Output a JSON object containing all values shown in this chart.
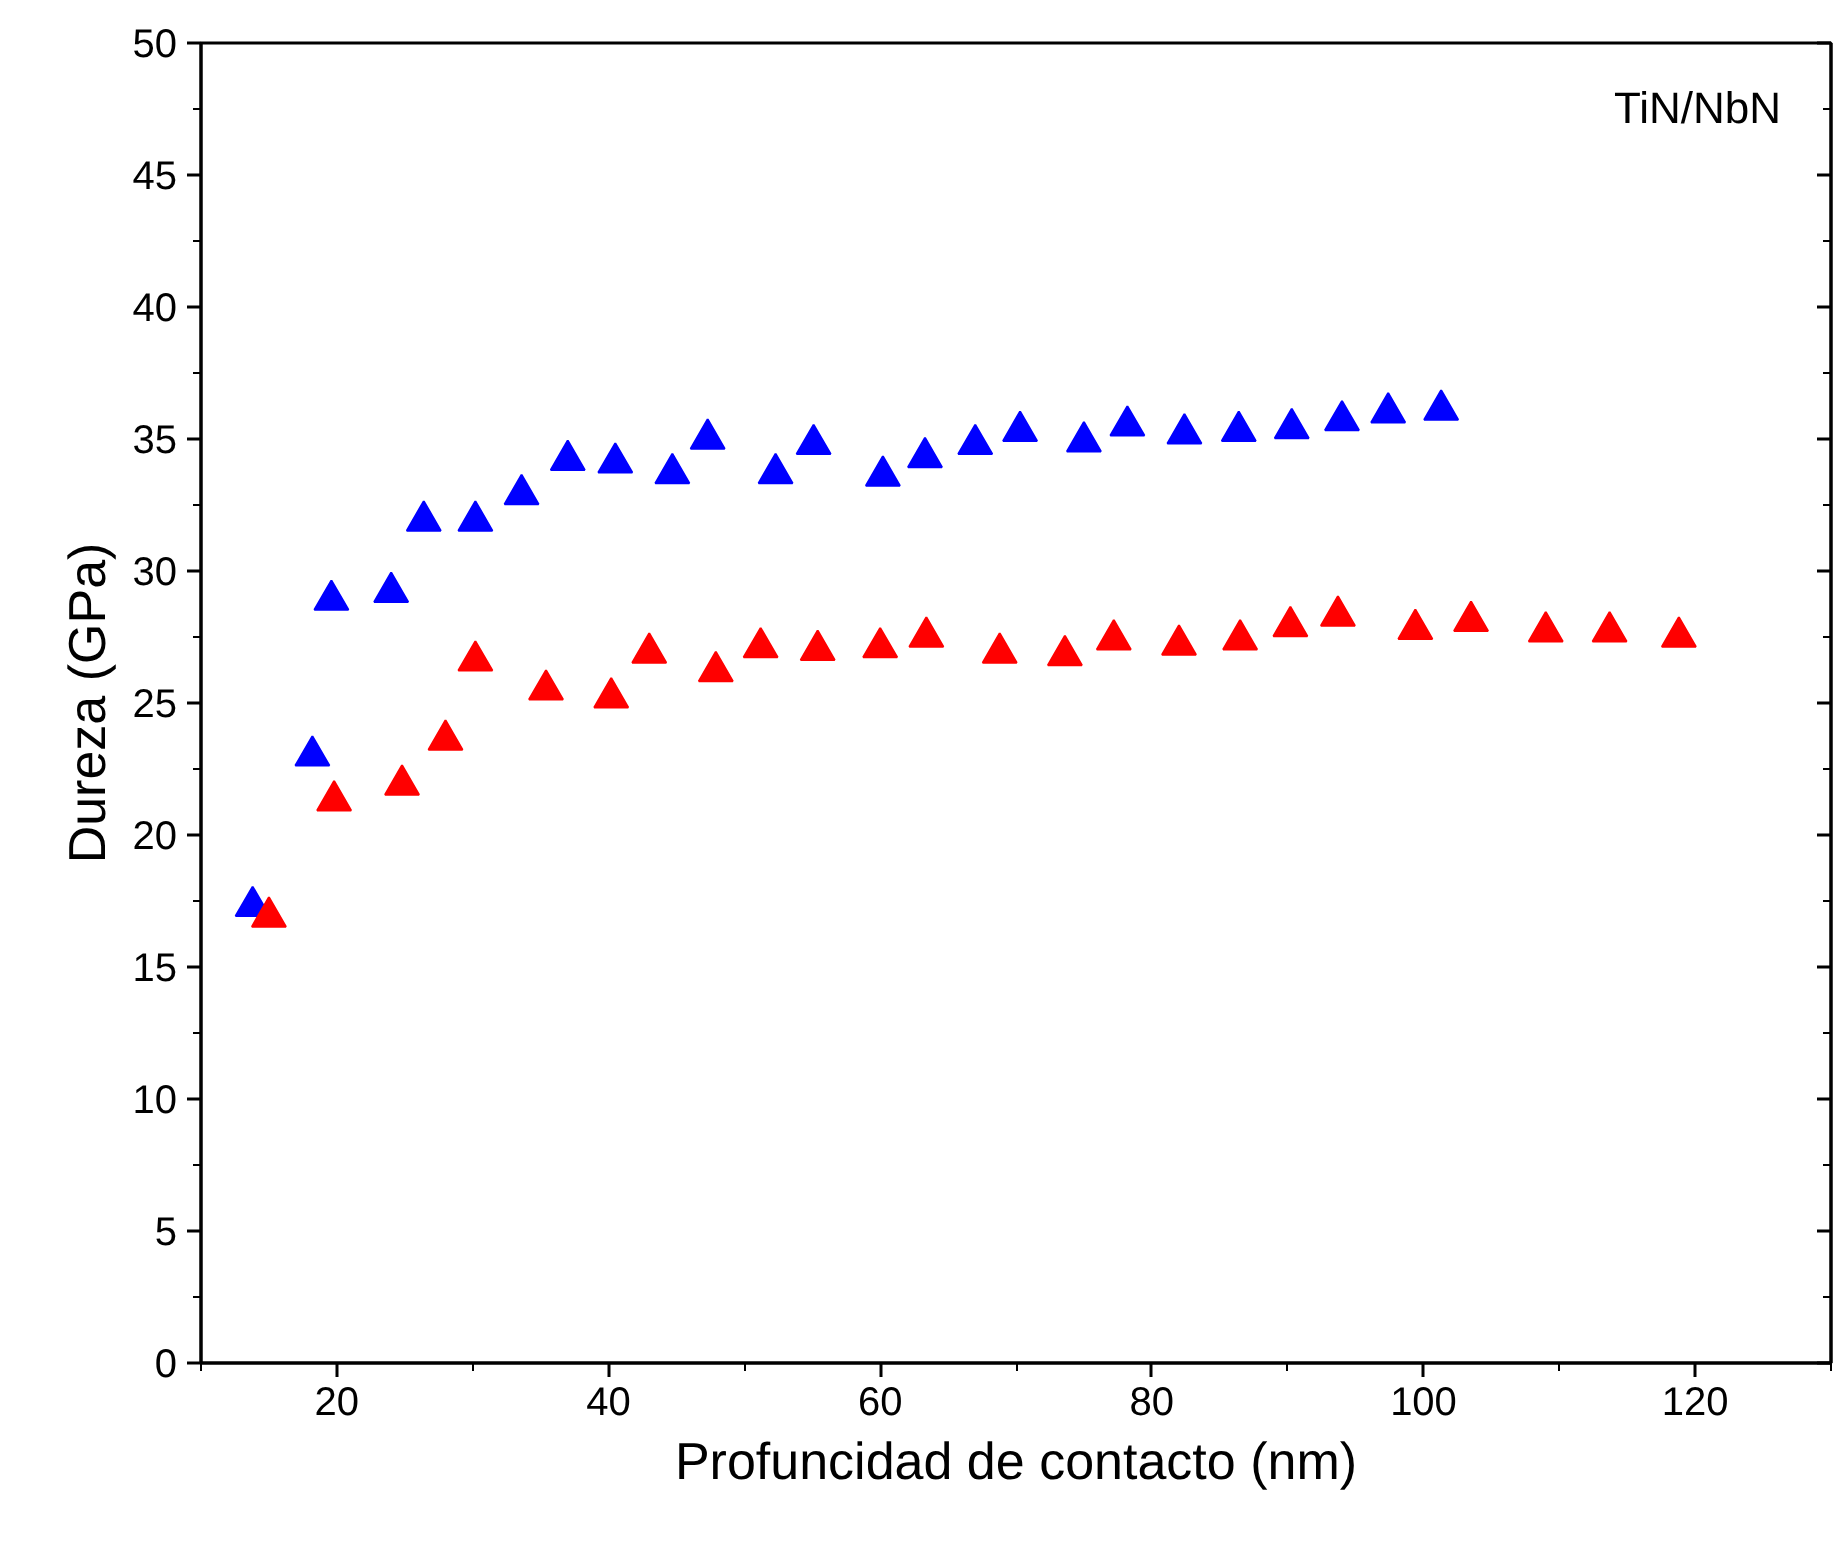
{
  "chart_data": {
    "type": "scatter",
    "xlabel": "Profuncidad de contacto (nm)",
    "ylabel": "Dureza (GPa)",
    "annotations": [
      "TiN/NbN"
    ],
    "marker": "triangle",
    "grid": false,
    "xlim": [
      10,
      130
    ],
    "xticks": [
      20,
      40,
      60,
      80,
      100,
      120
    ],
    "ylim": [
      0,
      50
    ],
    "yticks": [
      0,
      5,
      10,
      15,
      20,
      25,
      30,
      35,
      40,
      45,
      50
    ],
    "series": [
      {
        "color": "#0000ff",
        "x": [
          13.8,
          18.2,
          19.6,
          24,
          26.4,
          30.2,
          33.6,
          37,
          40.5,
          44.7,
          47.3,
          52.3,
          55.1,
          60.2,
          63.3,
          67,
          70.3,
          75,
          78.2,
          82.4,
          86.4,
          90.3,
          94,
          97.4,
          101.3
        ],
        "values": [
          17.3,
          23.0,
          28.9,
          29.2,
          31.9,
          31.9,
          32.9,
          34.2,
          34.1,
          33.7,
          35.0,
          33.7,
          34.8,
          33.6,
          34.3,
          34.8,
          35.3,
          34.9,
          35.5,
          35.2,
          35.3,
          35.4,
          35.7,
          36.0,
          36.1
        ]
      },
      {
        "color": "#ff0000",
        "x": [
          15,
          19.8,
          24.8,
          28,
          30.2,
          35.4,
          40.2,
          43,
          47.9,
          51.2,
          55.4,
          60,
          63.4,
          68.8,
          73.6,
          77.2,
          82,
          86.5,
          90.2,
          93.7,
          99.4,
          103.5,
          109,
          113.7,
          118.8
        ],
        "values": [
          16.9,
          21.3,
          21.9,
          23.6,
          26.6,
          25.5,
          25.2,
          26.9,
          26.2,
          27.1,
          27.0,
          27.1,
          27.5,
          26.9,
          26.8,
          27.4,
          27.2,
          27.4,
          27.9,
          28.3,
          27.8,
          28.1,
          27.7,
          27.7,
          27.5
        ]
      }
    ]
  }
}
